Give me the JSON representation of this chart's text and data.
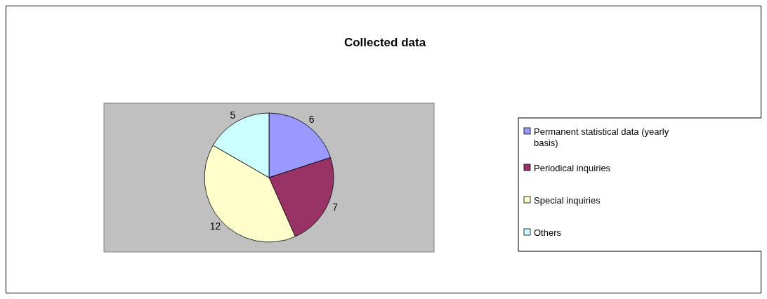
{
  "chart_data": {
    "type": "pie",
    "title": "Collected data",
    "categories": [
      "Permanent statistical data (yearly basis)",
      "Periodical inquiries",
      "Special inquiries",
      "Others"
    ],
    "values": [
      6,
      7,
      12,
      5
    ],
    "colors": [
      "#9999ff",
      "#993366",
      "#ffffcc",
      "#ccffff"
    ],
    "data_labels": true,
    "legend": "right"
  }
}
